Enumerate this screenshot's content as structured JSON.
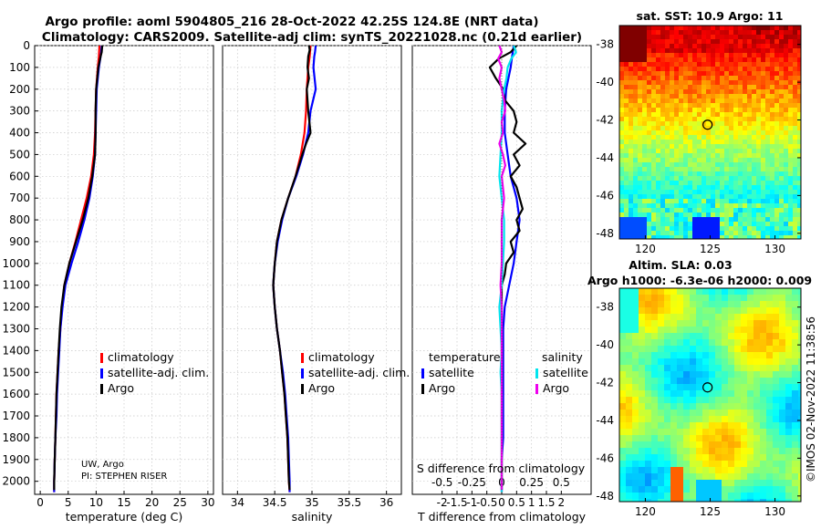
{
  "header": {
    "title_line1": "Argo profile: aoml 5904805_216 28-Oct-2022 42.25S 124.8E (NRT data)",
    "title_line2": "Climatology: CARS2009. Satellite-adj clim: synTS_20221028.nc (0.21d earlier)"
  },
  "colors": {
    "climatology": "#ff0000",
    "satellite": "#0000ff",
    "argo": "#000000",
    "sat_salinity": "#00e5ee",
    "argo_salinity": "#ee00ee"
  },
  "depth_axis": {
    "min": 0,
    "max": 2060,
    "ticks": [
      0,
      100,
      200,
      300,
      400,
      500,
      600,
      700,
      800,
      900,
      1000,
      1100,
      1200,
      1300,
      1400,
      1500,
      1600,
      1700,
      1800,
      1900,
      2000
    ]
  },
  "chart_data": [
    {
      "id": "temperature",
      "type": "line",
      "xlabel": "temperature (deg C)",
      "xlim": [
        -1,
        31
      ],
      "xticks": [
        0,
        5,
        10,
        15,
        20,
        25,
        30
      ],
      "ylim": [
        2060,
        0
      ],
      "legend": [
        "climatology",
        "satellite-adj. clim.",
        "Argo"
      ],
      "legend_placement": "center-right",
      "note_line1": "UW, Argo",
      "note_line2": "PI: STEPHEN RISER",
      "series": [
        {
          "name": "climatology",
          "color": "#ff0000",
          "depth": [
            0,
            50,
            100,
            200,
            300,
            400,
            500,
            600,
            700,
            800,
            900,
            1000,
            1100,
            1200,
            1300,
            1400,
            1500,
            1600,
            1700,
            1800,
            1900,
            2000,
            2050
          ],
          "values": [
            10.6,
            10.5,
            10.3,
            10.0,
            9.9,
            9.8,
            9.6,
            9.1,
            8.3,
            7.3,
            6.3,
            5.2,
            4.3,
            3.9,
            3.6,
            3.3,
            3.1,
            2.9,
            2.8,
            2.7,
            2.6,
            2.5,
            2.5
          ]
        },
        {
          "name": "satellite-adj. clim.",
          "color": "#0000ff",
          "depth": [
            0,
            30,
            50,
            100,
            200,
            300,
            400,
            500,
            600,
            700,
            800,
            900,
            1000,
            1100,
            1200,
            1300,
            1400,
            1500,
            1600,
            1700,
            1800,
            1900,
            2000,
            2050
          ],
          "values": [
            11.0,
            10.9,
            10.8,
            10.5,
            10.1,
            10.0,
            9.9,
            9.8,
            9.4,
            8.8,
            7.9,
            6.8,
            5.6,
            4.5,
            4.0,
            3.6,
            3.4,
            3.2,
            3.0,
            2.9,
            2.7,
            2.6,
            2.5,
            2.5
          ]
        },
        {
          "name": "Argo",
          "color": "#000000",
          "depth": [
            0,
            30,
            50,
            100,
            200,
            300,
            400,
            500,
            600,
            700,
            800,
            900,
            1000,
            1100,
            1200,
            1300,
            1400,
            1500,
            1600,
            1700,
            1800,
            1900,
            2000,
            2040
          ],
          "values": [
            11.1,
            11.0,
            10.8,
            10.4,
            10.0,
            9.9,
            9.9,
            9.8,
            9.3,
            8.6,
            7.6,
            6.4,
            5.2,
            4.3,
            3.8,
            3.5,
            3.3,
            3.1,
            2.9,
            2.8,
            2.7,
            2.6,
            2.5,
            2.5
          ]
        }
      ]
    },
    {
      "id": "salinity",
      "type": "line",
      "xlabel": "salinity",
      "xlim": [
        33.8,
        36.2
      ],
      "xticks": [
        34,
        34.5,
        35,
        35.5,
        36
      ],
      "xticklabels": [
        "34",
        "34.5",
        "35",
        "35.5",
        "36"
      ],
      "ylim": [
        2060,
        0
      ],
      "legend": [
        "climatology",
        "satellite-adj. clim.",
        "Argo"
      ],
      "legend_placement": "center-right",
      "series": [
        {
          "name": "climatology",
          "color": "#ff0000",
          "depth": [
            0,
            50,
            100,
            200,
            300,
            400,
            500,
            600,
            700,
            800,
            900,
            1000,
            1100,
            1200,
            1300,
            1400,
            1500,
            1600,
            1700,
            1800,
            1900,
            2000,
            2050
          ],
          "values": [
            34.98,
            34.97,
            34.95,
            34.93,
            34.92,
            34.9,
            34.85,
            34.78,
            34.68,
            34.59,
            34.53,
            34.5,
            34.48,
            34.5,
            34.53,
            34.57,
            34.6,
            34.63,
            34.65,
            34.67,
            34.68,
            34.69,
            34.7
          ]
        },
        {
          "name": "satellite-adj. clim.",
          "color": "#0000ff",
          "depth": [
            0,
            30,
            50,
            100,
            200,
            300,
            400,
            500,
            600,
            700,
            800,
            900,
            1000,
            1100,
            1200,
            1300,
            1400,
            1500,
            1600,
            1700,
            1800,
            1900,
            2000,
            2050
          ],
          "values": [
            35.05,
            35.04,
            35.03,
            35.02,
            35.05,
            34.98,
            34.95,
            34.88,
            34.79,
            34.68,
            34.6,
            34.54,
            34.5,
            34.48,
            34.5,
            34.53,
            34.57,
            34.61,
            34.64,
            34.66,
            34.68,
            34.69,
            34.7,
            34.7
          ]
        },
        {
          "name": "Argo",
          "color": "#000000",
          "depth": [
            0,
            20,
            50,
            100,
            150,
            200,
            300,
            400,
            450,
            500,
            600,
            700,
            800,
            900,
            1000,
            1100,
            1200,
            1300,
            1400,
            1500,
            1600,
            1700,
            1800,
            1900,
            2000,
            2040
          ],
          "values": [
            34.96,
            34.97,
            34.95,
            34.94,
            34.96,
            34.93,
            34.95,
            34.98,
            34.92,
            34.87,
            34.78,
            34.68,
            34.59,
            34.53,
            34.5,
            34.48,
            34.5,
            34.53,
            34.57,
            34.6,
            34.63,
            34.65,
            34.67,
            34.68,
            34.69,
            34.7
          ]
        }
      ]
    },
    {
      "id": "difference",
      "type": "line",
      "xlabel": "T difference from climatology",
      "xlim": [
        -3,
        3
      ],
      "xticks": [
        -2,
        -1.5,
        -1,
        -0.5,
        0,
        0.5,
        1,
        1.5,
        2
      ],
      "xticklabels": [
        "-2",
        "-1.5",
        "-1",
        "-0.5",
        "0",
        "0.5",
        "1",
        "1.5",
        "2"
      ],
      "xlabel2": "S difference from climatology",
      "xlim2": [
        -0.75,
        0.75
      ],
      "xticks2": [
        -0.5,
        -0.25,
        0,
        0.25,
        0.5
      ],
      "xticklabels2": [
        "-0.5",
        "-0.25",
        "0",
        "0.25",
        "0.5"
      ],
      "ylim": [
        2060,
        0
      ],
      "legend_temp_title": "temperature",
      "legend_sal_title": "salinity",
      "legend_temp": [
        "satellite",
        "Argo"
      ],
      "legend_sal": [
        "satellite",
        "Argo"
      ],
      "series": [
        {
          "name": "T satellite",
          "scale": "T",
          "color": "#0000ff",
          "depth": [
            0,
            50,
            100,
            200,
            300,
            400,
            500,
            600,
            700,
            800,
            900,
            1000,
            1100,
            1200,
            1300,
            1400,
            1500,
            1600,
            1700,
            1800,
            1900,
            2000,
            2050
          ],
          "values": [
            0.4,
            0.35,
            0.3,
            0.15,
            0.1,
            0.1,
            0.2,
            0.3,
            0.5,
            0.6,
            0.5,
            0.4,
            0.25,
            0.1,
            0.05,
            0.05,
            0.05,
            0.05,
            0.05,
            0.05,
            0.0,
            0.0,
            0.0
          ]
        },
        {
          "name": "T Argo",
          "scale": "T",
          "color": "#000000",
          "depth": [
            0,
            30,
            60,
            100,
            150,
            200,
            250,
            300,
            350,
            400,
            450,
            500,
            550,
            600,
            650,
            700,
            750,
            800,
            850,
            900,
            950,
            1000,
            1050,
            1100,
            1200,
            1300,
            1400,
            1500,
            1600,
            1700,
            1800,
            1900,
            2000,
            2040
          ],
          "values": [
            0.5,
            0.3,
            -0.1,
            -0.4,
            -0.2,
            0.05,
            0.1,
            0.4,
            0.5,
            0.4,
            0.8,
            0.4,
            0.6,
            0.3,
            0.5,
            0.6,
            0.7,
            0.5,
            0.6,
            0.3,
            0.4,
            0.15,
            0.1,
            0.0,
            0.0,
            0.0,
            0.0,
            0.0,
            0.0,
            0.0,
            0.0,
            0.0,
            0.0,
            0.0
          ]
        },
        {
          "name": "S satellite",
          "scale": "S",
          "color": "#00e5ee",
          "depth": [
            0,
            30,
            60,
            100,
            150,
            200,
            300,
            400,
            500,
            600,
            700,
            800,
            900,
            1000,
            1100,
            1200,
            1300,
            1400,
            1500,
            1600,
            1700,
            1800,
            1900,
            2000,
            2050
          ],
          "values": [
            0.1,
            0.12,
            0.08,
            0.05,
            0.04,
            0.02,
            0.0,
            0.0,
            -0.01,
            -0.02,
            0.0,
            0.02,
            0.02,
            0.01,
            0.0,
            -0.02,
            -0.01,
            0.0,
            -0.01,
            0.0,
            0.0,
            0.0,
            0.0,
            0.0,
            0.0
          ]
        },
        {
          "name": "S Argo",
          "scale": "S",
          "color": "#ee00ee",
          "depth": [
            0,
            30,
            60,
            100,
            150,
            200,
            250,
            300,
            350,
            400,
            450,
            500,
            550,
            600,
            700,
            800,
            900,
            1000,
            1100,
            1200,
            1300,
            1400,
            1500,
            1600,
            1700,
            1800,
            1900,
            2000,
            2040
          ],
          "values": [
            -0.02,
            0.0,
            -0.03,
            0.0,
            -0.02,
            0.0,
            0.02,
            0.03,
            0.0,
            0.01,
            -0.02,
            0.01,
            0.03,
            0.0,
            0.02,
            0.0,
            0.0,
            0.0,
            -0.01,
            0.0,
            0.0,
            0.0,
            0.0,
            0.0,
            0.0,
            0.0,
            0.0,
            0.0,
            0.0
          ]
        }
      ]
    }
  ],
  "sst_map": {
    "title": "sat. SST: 10.9  Argo: 11",
    "xticks": [
      120,
      125,
      130
    ],
    "yticks": [
      "-38",
      "-40",
      "-42",
      "-44",
      "-46",
      "-48"
    ],
    "xlim": [
      118,
      132
    ],
    "ylim": [
      -48.3,
      -37
    ],
    "marker_lon": 124.8,
    "marker_lat": -42.25
  },
  "sla_map": {
    "title_line1": "Altim. SLA: 0.03",
    "title_line2": "Argo h1000: -6.3e-06 h2000: 0.009",
    "xticks": [
      120,
      125,
      130
    ],
    "yticks": [
      "-38",
      "-40",
      "-42",
      "-44",
      "-46",
      "-48"
    ],
    "xlim": [
      118,
      132
    ],
    "ylim": [
      -48.3,
      -37
    ],
    "marker_lon": 124.8,
    "marker_lat": -42.25
  },
  "footer": {
    "copyright": "©IMOS 02-Nov-2022 11:38:56"
  }
}
